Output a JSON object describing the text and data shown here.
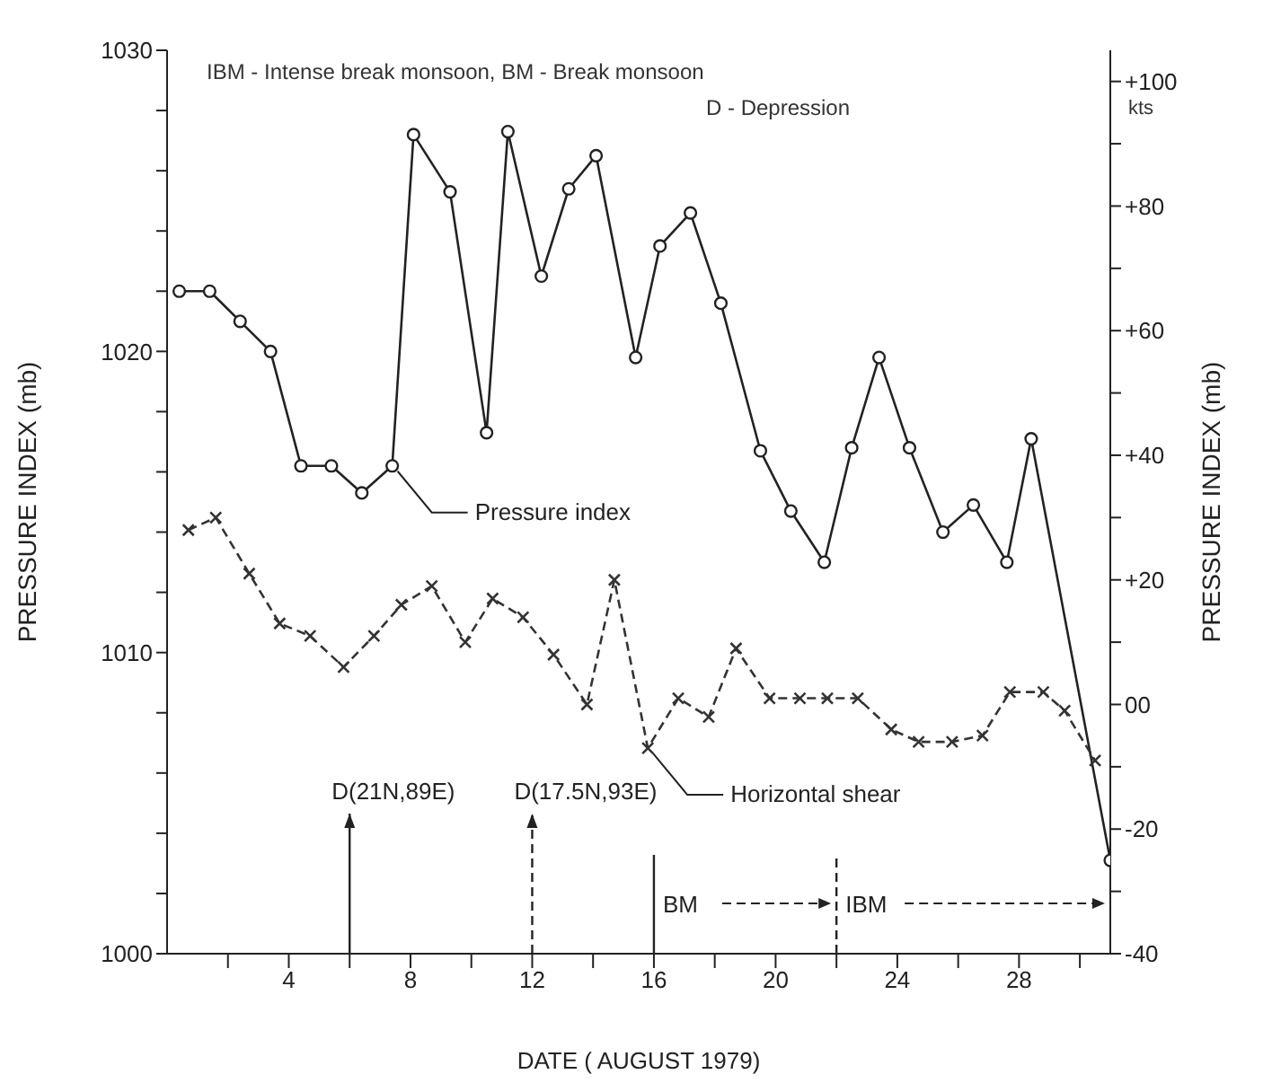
{
  "chart_data": {
    "type": "line",
    "xlabel": "DATE ( AUGUST 1979)",
    "ylabel": "PRESSURE  INDEX (mb)",
    "y2label": "PRESSURE  INDEX  (mb)",
    "xlim": [
      0,
      31
    ],
    "xticks": [
      {
        "value": 2,
        "label": null
      },
      4,
      {
        "value": 6,
        "label": null
      },
      8,
      {
        "value": 10,
        "label": null
      },
      12,
      {
        "value": 14,
        "label": null
      },
      16,
      {
        "value": 18,
        "label": null
      },
      20,
      {
        "value": 22,
        "label": null
      },
      24,
      {
        "value": 26,
        "label": null
      },
      28,
      {
        "value": 30,
        "label": null
      }
    ],
    "ylim": [
      1000,
      1030
    ],
    "yticks": [
      1000,
      {
        "value": 1002,
        "label": null
      },
      {
        "value": 1004,
        "label": null
      },
      {
        "value": 1006,
        "label": null
      },
      {
        "value": 1008,
        "label": null
      },
      1010,
      {
        "value": 1012,
        "label": null
      },
      {
        "value": 1014,
        "label": null
      },
      {
        "value": 1016,
        "label": null
      },
      {
        "value": 1018,
        "label": null
      },
      1020,
      {
        "value": 1022,
        "label": null
      },
      {
        "value": 1024,
        "label": null
      },
      {
        "value": 1026,
        "label": null
      },
      {
        "value": 1028,
        "label": null
      },
      1030
    ],
    "y2lim": [
      -40,
      105
    ],
    "y2ticks": [
      {
        "value": -40,
        "label": "-40"
      },
      {
        "value": -30,
        "label": null
      },
      {
        "value": -20,
        "label": "-20"
      },
      {
        "value": -10,
        "label": null
      },
      {
        "value": 0,
        "label": "00"
      },
      {
        "value": 10,
        "label": null
      },
      {
        "value": 20,
        "label": "+20"
      },
      {
        "value": 30,
        "label": null
      },
      {
        "value": 40,
        "label": "+40"
      },
      {
        "value": 50,
        "label": null
      },
      {
        "value": 60,
        "label": "+60"
      },
      {
        "value": 70,
        "label": null
      },
      {
        "value": 80,
        "label": "+80"
      },
      {
        "value": 90,
        "label": null
      },
      {
        "value": 100,
        "label": "+100"
      }
    ],
    "grid": false,
    "legend": false,
    "series": [
      {
        "name": "Pressure index",
        "color": "#222222",
        "marker": "circle",
        "line_style": "solid",
        "x": [
          0.4,
          1.4,
          2.4,
          3.4,
          4.4,
          5.4,
          6.4,
          7.4,
          8.1,
          9.3,
          10.5,
          11.2,
          12.3,
          13.2,
          14.1,
          15.4,
          16.2,
          17.2,
          18.2,
          19.5,
          20.5,
          21.6,
          22.5,
          23.4,
          24.4,
          25.5,
          26.5,
          27.6,
          28.4,
          31
        ],
        "values": [
          1022,
          1022,
          1021,
          1020,
          1016.2,
          1016.2,
          1015.3,
          1016.2,
          1027.2,
          1025.3,
          1017.3,
          1027.3,
          1022.5,
          1025.4,
          1026.5,
          1019.8,
          1023.5,
          1024.6,
          1021.6,
          1016.7,
          1014.7,
          1013,
          1016.8,
          1019.8,
          1016.8,
          1014,
          1014.9,
          1013,
          1017.1,
          1003.1
        ]
      },
      {
        "name": "Horizontal shear",
        "color": "#333333",
        "marker": "cross",
        "line_style": "dashed",
        "axis": "y2",
        "x": [
          0.7,
          1.6,
          2.7,
          3.7,
          4.7,
          5.8,
          6.8,
          7.7,
          8.7,
          9.8,
          10.7,
          11.7,
          12.7,
          13.8,
          14.7,
          15.8,
          16.8,
          17.8,
          18.7,
          19.8,
          20.8,
          21.7,
          22.7,
          23.8,
          24.7,
          25.8,
          26.8,
          27.7,
          28.8,
          29.5,
          30.5
        ],
        "values": [
          28,
          30,
          21,
          13,
          11,
          6,
          11,
          16,
          19,
          10,
          17,
          14,
          8,
          0,
          20,
          -7,
          1,
          -2,
          9,
          1,
          1,
          1,
          1,
          -4,
          -6,
          -6,
          -5,
          2,
          2,
          -1,
          -9
        ]
      }
    ],
    "ref_lines": [
      {
        "axis": "x",
        "value": 6,
        "label": "D(21N,89E)",
        "line_style": "solid"
      },
      {
        "axis": "x",
        "value": 12,
        "label": "D(17.5N,93E)",
        "line_style": "dashed"
      },
      {
        "axis": "x",
        "value": 16,
        "label": "BM",
        "line_style": "solid"
      },
      {
        "axis": "x",
        "value": 22,
        "label": "IBM",
        "line_style": "dashed"
      }
    ],
    "annotations": [
      "IBM - Intense break monsoon,   BM - Break monsoon",
      "D - Depression",
      "kts"
    ]
  }
}
